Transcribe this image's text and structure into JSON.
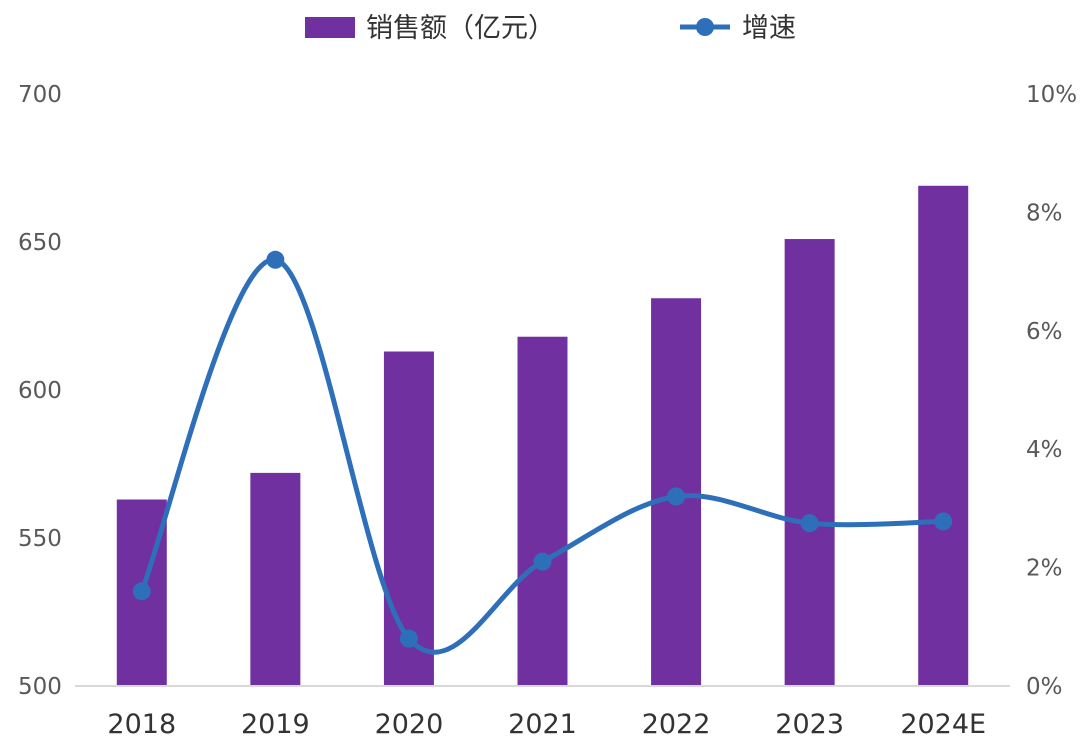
{
  "chart_data": {
    "type": "bar+line",
    "categories": [
      "2018",
      "2019",
      "2020",
      "2021",
      "2022",
      "2023",
      "2024E"
    ],
    "series": [
      {
        "name": "销售额（亿元）",
        "type": "bar",
        "axis": "left",
        "values": [
          563,
          572,
          613,
          618,
          631,
          651,
          669
        ]
      },
      {
        "name": "增速",
        "type": "line",
        "axis": "right",
        "smooth": true,
        "values": [
          1.6,
          7.2,
          0.8,
          2.1,
          3.2,
          2.75,
          2.78
        ]
      }
    ],
    "y_left": {
      "min": 500,
      "max": 700,
      "ticks": [
        "500",
        "550",
        "600",
        "650",
        "700"
      ]
    },
    "y_right": {
      "min": 0,
      "max": 10,
      "ticks": [
        "0%",
        "2%",
        "4%",
        "6%",
        "8%",
        "10%"
      ]
    },
    "legend": {
      "position": "top-center",
      "bar_label": "销售额（亿元）",
      "line_label": "增速"
    },
    "grid": false,
    "colors": {
      "bar": "#7030a0",
      "line": "#2e6fba",
      "axis": "#d9d9d9"
    }
  }
}
